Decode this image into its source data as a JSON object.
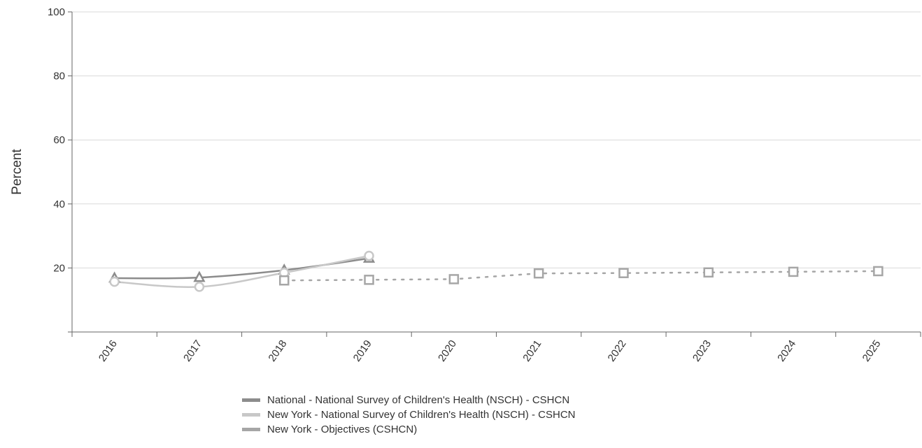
{
  "chart_data": {
    "type": "line",
    "title": "",
    "xlabel": "",
    "ylabel": "Percent",
    "categories": [
      "2016",
      "2017",
      "2018",
      "2019",
      "2020",
      "2021",
      "2022",
      "2023",
      "2024",
      "2025"
    ],
    "ylim": [
      0,
      100
    ],
    "yticks": [
      "20",
      "40",
      "60",
      "80",
      "100"
    ],
    "grid": true,
    "legend_position": "bottom",
    "series": [
      {
        "name": "National - National Survey of Children's Health (NSCH) - CSHCN",
        "marker": "triangle",
        "style": "solid",
        "color": "#8c8c8c",
        "values": [
          16.8,
          17.0,
          19.3,
          23.0,
          null,
          null,
          null,
          null,
          null,
          null
        ]
      },
      {
        "name": "New York - National Survey of Children's Health (NSCH) - CSHCN",
        "marker": "circle",
        "style": "solid",
        "color": "#c8c8c8",
        "values": [
          15.7,
          14.1,
          18.5,
          23.8,
          null,
          null,
          null,
          null,
          null,
          null
        ]
      },
      {
        "name": "New York - Objectives (CSHCN)",
        "marker": "square",
        "style": "dotted",
        "color": "#a6a6a6",
        "values": [
          null,
          null,
          16.1,
          16.3,
          16.5,
          18.3,
          18.4,
          18.6,
          18.8,
          19.0
        ]
      }
    ]
  }
}
